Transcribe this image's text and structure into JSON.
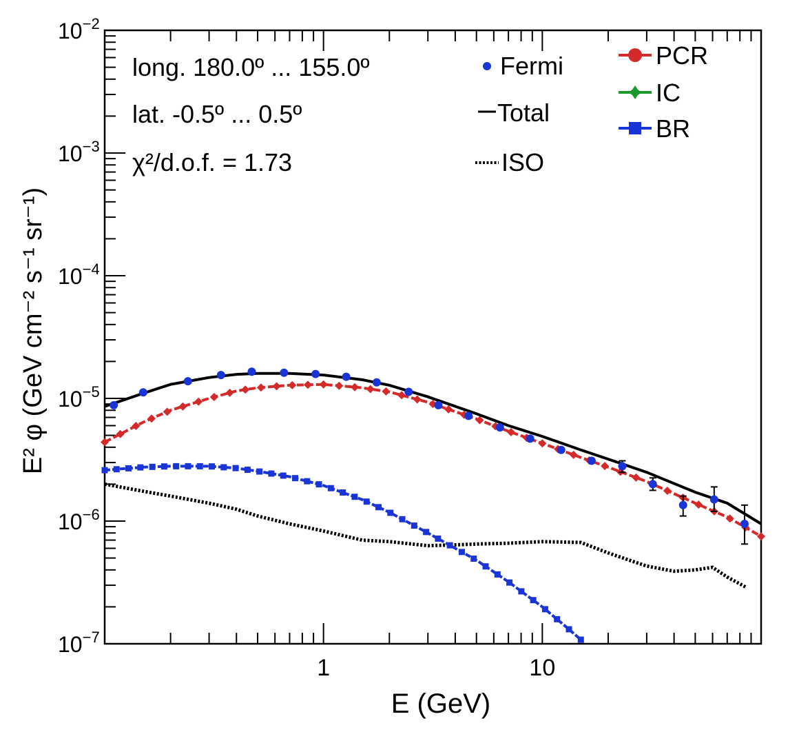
{
  "chart_data": {
    "type": "line",
    "xlabel": "E (GeV)",
    "ylabel": "E² φ (GeV cm⁻² s⁻¹ sr⁻¹)",
    "xscale": "log",
    "yscale": "log",
    "xlim": [
      0.1,
      100
    ],
    "ylim": [
      1e-07,
      0.01
    ],
    "x_tick_labels": [
      {
        "v": 1,
        "label": "1"
      },
      {
        "v": 10,
        "label": "10"
      }
    ],
    "y_tick_labels": [
      {
        "v": 1e-07,
        "base": "10",
        "exp": "−7"
      },
      {
        "v": 1e-06,
        "base": "10",
        "exp": "−6"
      },
      {
        "v": 1e-05,
        "base": "10",
        "exp": "−5"
      },
      {
        "v": 0.0001,
        "base": "10",
        "exp": "−4"
      },
      {
        "v": 0.001,
        "base": "10",
        "exp": "−3"
      },
      {
        "v": 0.01,
        "base": "10",
        "exp": "−2"
      }
    ],
    "grid": false,
    "annotations": {
      "longitude": "long. 180.0º ... 155.0º",
      "latitude": "lat. -0.5º ... 0.5º",
      "chi2": "χ²/d.o.f. = 1.73"
    },
    "legend": {
      "left": [
        "Fermi",
        "Total",
        "ISO"
      ],
      "right": [
        "PCR",
        "IC",
        "BR"
      ]
    },
    "colors": {
      "fermi": "#1a35d6",
      "total": "#000000",
      "pcr": "#d42a2a",
      "ic": "#1a9a2a",
      "br": "#1a35d6",
      "iso": "#000000"
    },
    "series": {
      "fermi": {
        "name": "Fermi",
        "x": [
          0.11,
          0.15,
          0.24,
          0.34,
          0.47,
          0.66,
          0.92,
          1.27,
          1.75,
          2.45,
          3.35,
          4.6,
          6.4,
          8.8,
          12.2,
          16.8,
          23.2,
          32,
          44,
          61,
          84
        ],
        "y": [
          8.8e-06,
          1.12e-05,
          1.38e-05,
          1.55e-05,
          1.65e-05,
          1.62e-05,
          1.58e-05,
          1.5e-05,
          1.35e-05,
          1.13e-05,
          8.8e-06,
          7.2e-06,
          5.8e-06,
          4.7e-06,
          3.8e-06,
          3.1e-06,
          2.8e-06,
          2e-06,
          1.35e-06,
          1.5e-06,
          9.5e-07
        ],
        "err_low": [
          null,
          null,
          null,
          null,
          null,
          null,
          null,
          null,
          null,
          null,
          null,
          null,
          null,
          null,
          null,
          null,
          2.5e-06,
          1.78e-06,
          1.1e-06,
          1.2e-06,
          6.5e-07
        ],
        "err_high": [
          null,
          null,
          null,
          null,
          null,
          null,
          null,
          null,
          null,
          null,
          null,
          null,
          null,
          null,
          null,
          null,
          3.1e-06,
          2.25e-06,
          1.6e-06,
          1.9e-06,
          1.35e-06
        ]
      },
      "total": {
        "name": "Total",
        "x": [
          0.1,
          0.15,
          0.2,
          0.3,
          0.4,
          0.5,
          0.7,
          1.0,
          1.5,
          2.0,
          3.0,
          5.0,
          7.0,
          10,
          15,
          20,
          30,
          50,
          70,
          100
        ],
        "y": [
          8.6e-06,
          1.1e-05,
          1.3e-05,
          1.48e-05,
          1.57e-05,
          1.6e-05,
          1.6e-05,
          1.55e-05,
          1.42e-05,
          1.28e-05,
          1.03e-05,
          7.5e-06,
          6e-06,
          4.9e-06,
          3.8e-06,
          3.2e-06,
          2.5e-06,
          1.72e-06,
          1.4e-06,
          9.5e-07
        ]
      },
      "pcr": {
        "name": "PCR",
        "x": [
          0.1,
          0.15,
          0.2,
          0.3,
          0.4,
          0.5,
          0.7,
          1.0,
          1.5,
          2.0,
          3.0,
          5.0,
          7.0,
          10,
          15,
          20,
          30,
          50,
          70,
          100
        ],
        "y": [
          4.4e-06,
          6.4e-06,
          8e-06,
          1e-05,
          1.15e-05,
          1.22e-05,
          1.28e-05,
          1.3e-05,
          1.22e-05,
          1.13e-05,
          9.3e-06,
          6.8e-06,
          5.4e-06,
          4.3e-06,
          3.3e-06,
          2.75e-06,
          2.1e-06,
          1.4e-06,
          1.08e-06,
          7.5e-07
        ]
      },
      "br": {
        "name": "BR",
        "x": [
          0.1,
          0.15,
          0.2,
          0.3,
          0.4,
          0.5,
          0.7,
          1.0,
          1.5,
          2.0,
          3.0,
          4.0,
          5.0,
          7.0,
          10,
          13,
          15
        ],
        "y": [
          2.6e-06,
          2.75e-06,
          2.8e-06,
          2.8e-06,
          2.7e-06,
          2.55e-06,
          2.3e-06,
          1.95e-06,
          1.5e-06,
          1.18e-06,
          8e-07,
          6e-07,
          4.8e-07,
          3.2e-07,
          2e-07,
          1.35e-07,
          1.08e-07
        ]
      },
      "iso": {
        "name": "ISO",
        "x": [
          0.1,
          0.15,
          0.2,
          0.3,
          0.4,
          0.5,
          0.7,
          1.0,
          1.5,
          2.0,
          3.0,
          4.0,
          5.0,
          7.0,
          10,
          15,
          20,
          25,
          30,
          40,
          50,
          60,
          70,
          85
        ],
        "y": [
          2e-06,
          1.75e-06,
          1.6e-06,
          1.4e-06,
          1.25e-06,
          1.1e-06,
          9.5e-07,
          8.3e-07,
          7e-07,
          6.8e-07,
          6.3e-07,
          6.4e-07,
          6.5e-07,
          6.6e-07,
          6.8e-07,
          6.7e-07,
          5.5e-07,
          4.8e-07,
          4.3e-07,
          3.9e-07,
          4e-07,
          4.2e-07,
          3.5e-07,
          2.9e-07
        ]
      }
    }
  }
}
